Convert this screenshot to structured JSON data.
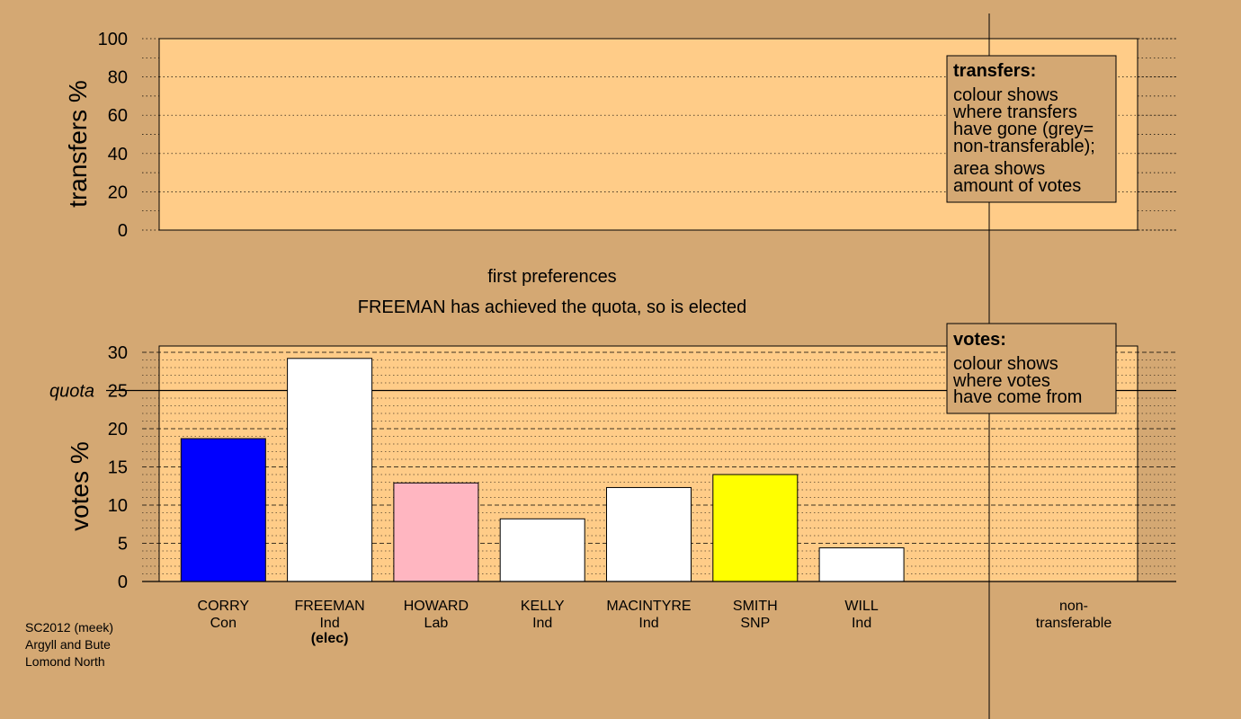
{
  "chart_data": [
    {
      "type": "bar",
      "panel": "transfers",
      "ylabel": "transfers %",
      "ylim": [
        0,
        100
      ],
      "yticks": [
        0,
        20,
        40,
        60,
        80,
        100
      ],
      "categories": [],
      "values": [],
      "legend": {
        "title": "transfers:",
        "lines": [
          "colour shows",
          "where transfers",
          "have gone (grey=",
          "non-transferable);",
          "area shows",
          "amount of votes"
        ]
      }
    },
    {
      "type": "bar",
      "panel": "votes",
      "ylabel": "votes %",
      "ylim": [
        0,
        30
      ],
      "yticks": [
        0,
        5,
        10,
        15,
        20,
        25,
        30
      ],
      "quota": {
        "label": "quota",
        "value": 25
      },
      "categories": [
        "CORRY",
        "FREEMAN",
        "HOWARD",
        "KELLY",
        "MACINTYRE",
        "SMITH",
        "WILL"
      ],
      "parties": [
        "Con",
        "Ind",
        "Lab",
        "Ind",
        "Ind",
        "SNP",
        "Ind"
      ],
      "notes": [
        "",
        "(elec)",
        "",
        "",
        "",
        "",
        ""
      ],
      "values": [
        18.7,
        29.2,
        12.9,
        8.2,
        12.3,
        14.0,
        4.4
      ],
      "colors": [
        "#0000ff",
        "#ffffff",
        "#ffb6c1",
        "#ffffff",
        "#ffffff",
        "#ffff00",
        "#ffffff"
      ],
      "extra_column": {
        "line1": "non-",
        "line2": "transferable"
      },
      "legend": {
        "title": "votes:",
        "lines": [
          "colour shows",
          "where votes",
          "have come from"
        ]
      }
    }
  ],
  "captions": {
    "stage": "first preferences",
    "status": "FREEMAN has achieved the quota, so is elected"
  },
  "meta": {
    "line1": "SC2012 (meek)",
    "line2": "Argyll and Bute",
    "line3": "Lomond North"
  },
  "colors": {
    "background": "#d4a873",
    "panel": "#ffcc88",
    "legend_bg": "#d4a873"
  }
}
